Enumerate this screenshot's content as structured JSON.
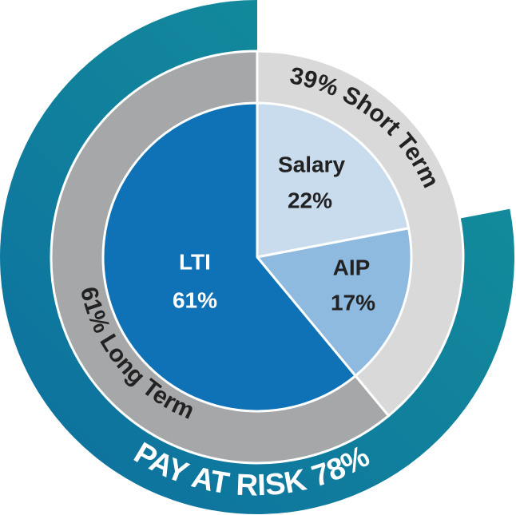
{
  "chart_data": {
    "type": "pie",
    "inner": {
      "slices": [
        {
          "label": "Salary",
          "value": 22,
          "value_text": "22%",
          "color": "#c9dcee",
          "text_color": "#222222"
        },
        {
          "label": "AIP",
          "value": 17,
          "value_text": "17%",
          "color": "#8fbadf",
          "text_color": "#222222"
        },
        {
          "label": "LTI",
          "value": 61,
          "value_text": "61%",
          "color": "#0f72b7",
          "text_color": "#ffffff"
        }
      ]
    },
    "middle": {
      "segments": [
        {
          "label": "39% Short Term",
          "value": 39,
          "color": "#d9d9da"
        },
        {
          "label": "61% Long Term",
          "value": 61,
          "color": "#a6a7a9"
        }
      ]
    },
    "outer": {
      "label": "PAY AT RISK 78%",
      "value": 78,
      "color": "#138a99"
    }
  }
}
